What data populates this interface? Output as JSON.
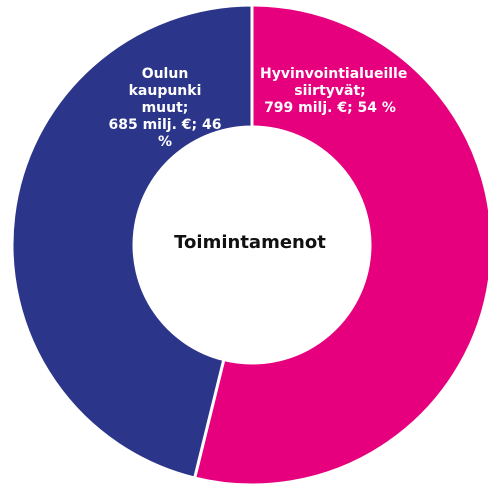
{
  "chart_data": {
    "type": "donut",
    "title": "Toimintamenot",
    "categories": [
      "Hyvinvointialueille siirtyvät;",
      "Oulun kaupunki muut;"
    ],
    "values": [
      799,
      685
    ],
    "value_labels": [
      "799 milj. €; 54 %",
      "685 milj. €; 46 %"
    ],
    "colors": [
      "#e6007e",
      "#2b3589"
    ]
  }
}
